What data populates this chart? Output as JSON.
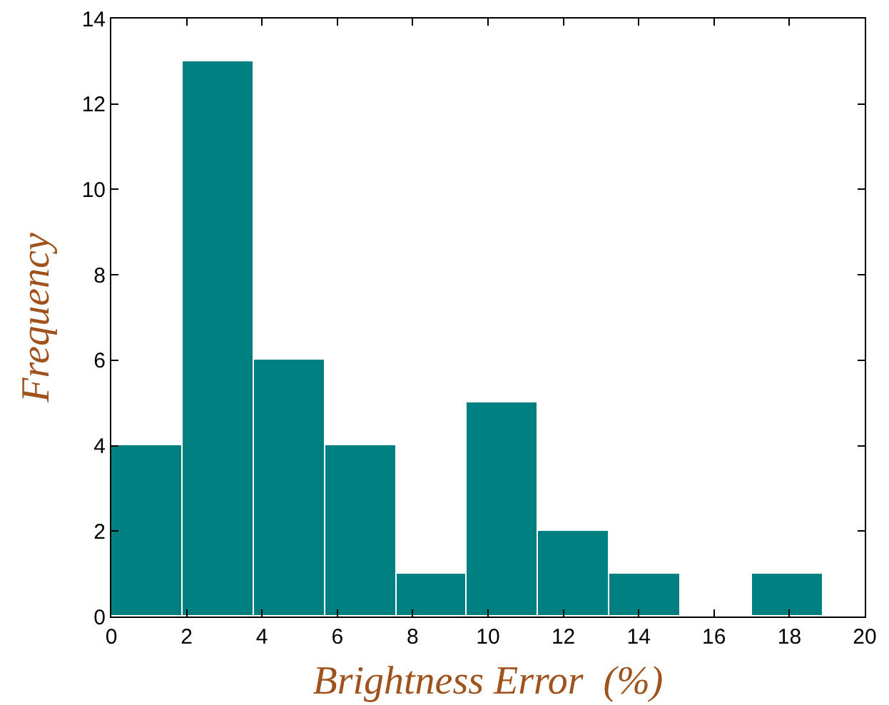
{
  "chart_data": {
    "type": "histogram",
    "xlabel": "Brightness Error  (%)",
    "ylabel": "Frequency",
    "bins": [
      0,
      1.89,
      3.78,
      5.67,
      7.56,
      9.45,
      11.34,
      13.23,
      15.12,
      17.01,
      18.9
    ],
    "values": [
      4,
      13,
      6,
      4,
      1,
      5,
      2,
      1,
      0,
      1
    ],
    "color": "#008080",
    "xlim": [
      0,
      20
    ],
    "xticks": [
      0,
      2,
      4,
      6,
      8,
      10,
      12,
      14,
      16,
      18,
      20
    ],
    "ylim": [
      0,
      14
    ],
    "yticks": [
      0,
      2,
      4,
      6,
      8,
      10,
      12,
      14
    ],
    "grid": false
  }
}
